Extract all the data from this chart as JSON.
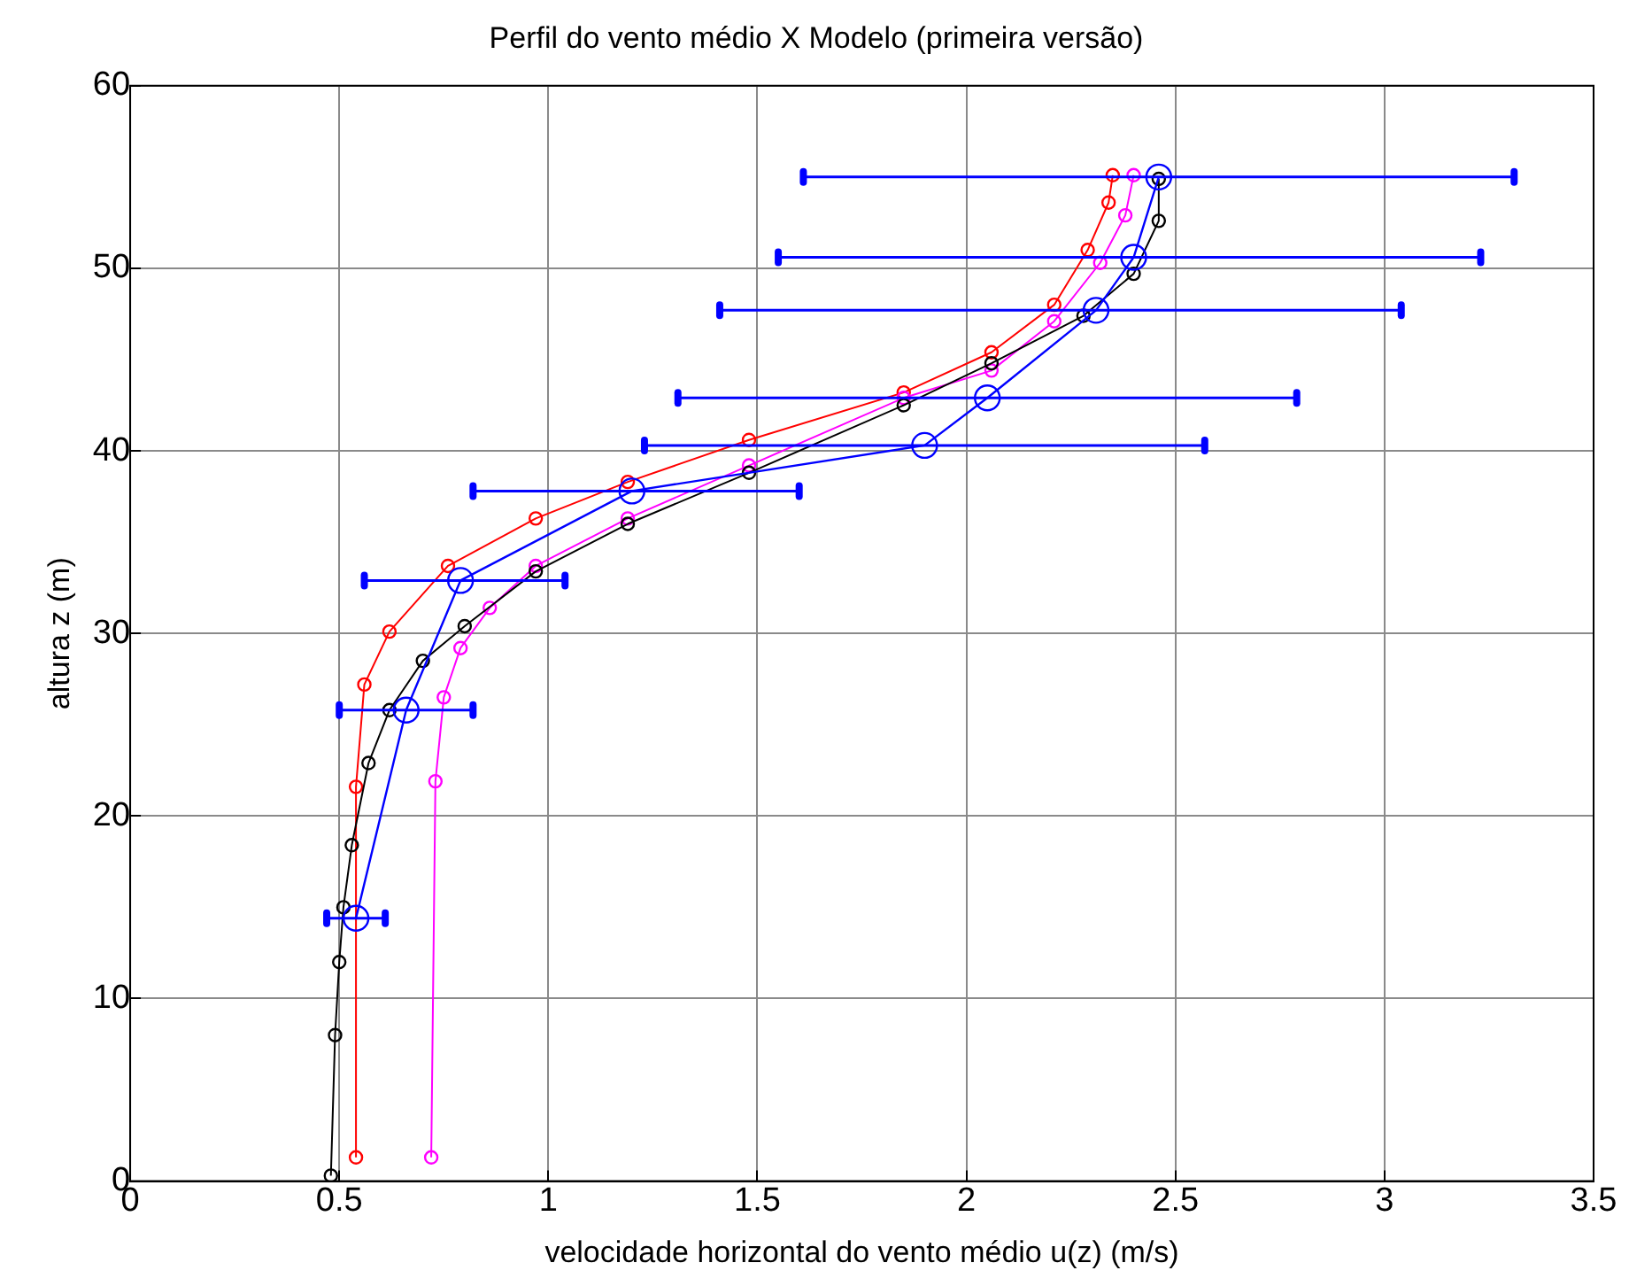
{
  "chart_data": {
    "type": "line",
    "title": "Perfil do vento médio X Modelo (primeira versão)",
    "xlabel": "velocidade horizontal do vento médio u(z) (m/s)",
    "ylabel": "altura z (m)",
    "xlim": [
      0,
      3.5
    ],
    "xticks": [
      0,
      0.5,
      1,
      1.5,
      2,
      2.5,
      3,
      3.5
    ],
    "ylim": [
      0,
      60
    ],
    "yticks": [
      0,
      10,
      20,
      30,
      40,
      50,
      60
    ],
    "grid": true,
    "legend": false,
    "series": [
      {
        "color": "#000000",
        "marker": "circle",
        "x": [
          0.48,
          0.49,
          0.5,
          0.51,
          0.53,
          0.57,
          0.62,
          0.7,
          0.8,
          0.97,
          1.19,
          1.48,
          1.85,
          2.06,
          2.28,
          2.4,
          2.46,
          2.46
        ],
        "values": [
          0.3,
          8,
          12,
          15,
          18.4,
          22.9,
          25.8,
          28.5,
          30.4,
          33.4,
          36,
          38.8,
          42.5,
          44.8,
          47.4,
          49.7,
          52.6,
          54.9
        ]
      },
      {
        "color": "#ff00ff",
        "marker": "circle",
        "x": [
          0.72,
          0.73,
          0.75,
          0.79,
          0.86,
          0.97,
          1.19,
          1.48,
          1.85,
          2.06,
          2.21,
          2.32,
          2.38,
          2.4
        ],
        "values": [
          1.3,
          21.9,
          26.5,
          29.2,
          31.4,
          33.7,
          36.3,
          39.2,
          42.9,
          44.4,
          47.1,
          50.3,
          52.9,
          55.1
        ]
      },
      {
        "color": "#ff0000",
        "marker": "circle",
        "x": [
          0.54,
          0.54,
          0.56,
          0.62,
          0.76,
          0.97,
          1.19,
          1.48,
          1.85,
          2.06,
          2.21,
          2.29,
          2.34,
          2.35
        ],
        "values": [
          1.3,
          21.6,
          27.2,
          30.1,
          33.7,
          36.3,
          38.3,
          40.6,
          43.2,
          45.4,
          48,
          51,
          53.6,
          55.1
        ]
      },
      {
        "color": "#0000ff",
        "marker": "circle",
        "x": [
          0.54,
          0.66,
          0.79,
          1.2,
          1.9,
          2.05,
          2.31,
          2.4,
          2.46
        ],
        "values": [
          14.4,
          25.8,
          32.9,
          37.8,
          40.3,
          42.9,
          47.7,
          50.6,
          55
        ],
        "xerrors": [
          [
            0.47,
            0.61
          ],
          [
            0.5,
            0.82
          ],
          [
            0.56,
            1.04
          ],
          [
            0.82,
            1.6
          ],
          [
            1.23,
            2.57
          ],
          [
            1.31,
            2.79
          ],
          [
            1.41,
            3.04
          ],
          [
            1.55,
            3.23
          ],
          [
            1.61,
            3.31
          ]
        ]
      }
    ]
  }
}
